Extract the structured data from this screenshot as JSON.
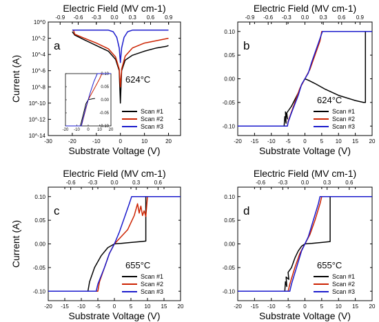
{
  "chart_data": [
    {
      "panel": "a",
      "type": "line",
      "temperature_label": "624°C",
      "xlabel": "Substrate Voltage (V)",
      "ylabel": "Current (A)",
      "top_axis_label": "Electric Field (MV cm-1)",
      "xlim": [
        -30,
        25
      ],
      "ylim_log10": [
        -14,
        0
      ],
      "yscale": "log",
      "xticks": [
        "-30",
        "-20",
        "-10",
        "0",
        "10",
        "20"
      ],
      "yticks": [
        "10^0",
        "10^-2",
        "10^-4",
        "10^-6",
        "10^-8",
        "10^-10",
        "10^-12",
        "10^-14"
      ],
      "top_ticks": [
        "-0.9",
        "-0.6",
        "-0.3",
        "0.0",
        "0.3",
        "0.6",
        "0.9"
      ],
      "legend": [
        "Scan #1",
        "Scan #2",
        "Scan #3"
      ],
      "legend_position": "lower-right",
      "series": [
        {
          "name": "Scan #1",
          "color": "#000000",
          "x": [
            -20,
            -19,
            -15,
            -10,
            -5,
            -2,
            -0.5,
            0,
            0.5,
            2,
            5,
            10,
            15,
            19,
            20
          ],
          "log10_y": [
            -1.2,
            -1.6,
            -2.2,
            -2.9,
            -3.6,
            -4.6,
            -6,
            -10,
            -6,
            -4.7,
            -4.1,
            -3.6,
            -3.2,
            -3,
            -2.9
          ]
        },
        {
          "name": "Scan #2",
          "color": "#cc2200",
          "x": [
            -20,
            -19.5,
            -19,
            -15,
            -10,
            -5,
            -2,
            -0.5,
            0,
            0.5,
            2,
            5,
            10,
            15,
            20
          ],
          "log10_y": [
            -1,
            -1,
            -1.5,
            -2,
            -2.6,
            -3.3,
            -4.3,
            -5.8,
            -8,
            -5.8,
            -4.2,
            -3.2,
            -2.6,
            -2.3,
            -2
          ]
        },
        {
          "name": "Scan #3",
          "color": "#1a1acc",
          "x": [
            -20,
            -19,
            -15,
            -10,
            -5,
            -3,
            -1.5,
            -0.5,
            0,
            0.5,
            1.5,
            3,
            5,
            10,
            20
          ],
          "log10_y": [
            -1,
            -1,
            -1,
            -1,
            -1,
            -1.2,
            -1.9,
            -3.2,
            -5,
            -3.2,
            -1.9,
            -1.2,
            -1,
            -1,
            -1
          ]
        }
      ],
      "inset": {
        "xlim": [
          -20,
          20
        ],
        "ylim": [
          -0.1,
          0.1
        ],
        "xticks": [
          "-20",
          "-10",
          "0",
          "10",
          "20"
        ],
        "yticks": [
          "0.10",
          "0.05",
          "0.00",
          "-0.05",
          "-0.10"
        ]
      }
    },
    {
      "panel": "b",
      "type": "line",
      "temperature_label": "624°C",
      "xlabel": "Substrate Voltage (V)",
      "ylabel": "",
      "top_axis_label": "Electric Field (MV cm-1)",
      "xlim": [
        -20,
        20
      ],
      "ylim": [
        -0.12,
        0.12
      ],
      "xticks": [
        "-20",
        "-15",
        "-10",
        "-5",
        "0",
        "5",
        "10",
        "15",
        "20"
      ],
      "yticks": [
        "0.10",
        "0.05",
        "0.00",
        "-0.05",
        "-0.10"
      ],
      "top_ticks": [
        "-0.9",
        "-0.6",
        "-0.3",
        "0.0",
        "0.3",
        "0.6",
        "0.9"
      ],
      "legend": [
        "Scan #1",
        "Scan #2",
        "Scan #3"
      ],
      "legend_position": "lower-right",
      "series": [
        {
          "name": "Scan #1",
          "color": "#000000",
          "x": [
            -20,
            -6.2,
            -6,
            -5.6,
            -5.8,
            -5.2,
            -5.4,
            -4,
            -2,
            -1,
            0,
            1,
            3,
            6,
            10,
            15,
            17.5,
            18,
            18,
            18.2,
            20
          ],
          "y": [
            -0.1,
            -0.1,
            -0.08,
            -0.094,
            -0.07,
            -0.085,
            -0.072,
            -0.058,
            -0.03,
            -0.013,
            0,
            -0.003,
            -0.01,
            -0.022,
            -0.035,
            -0.046,
            -0.05,
            -0.05,
            0.1,
            0.1,
            0.1
          ]
        },
        {
          "name": "Scan #2",
          "color": "#cc2200",
          "x": [
            -20,
            -5.2,
            -5,
            -4.5,
            -3,
            -1.5,
            0,
            1.5,
            3,
            4.5,
            5,
            20
          ],
          "y": [
            -0.1,
            -0.1,
            -0.09,
            -0.08,
            -0.05,
            -0.02,
            0,
            0.02,
            0.05,
            0.08,
            0.1,
            0.1
          ]
        },
        {
          "name": "Scan #3",
          "color": "#1a1acc",
          "x": [
            -20,
            -5.2,
            -5,
            -4,
            -2,
            -1,
            0,
            1,
            2,
            4,
            5.2,
            20
          ],
          "y": [
            -0.1,
            -0.1,
            -0.092,
            -0.072,
            -0.035,
            -0.012,
            0,
            0.012,
            0.035,
            0.075,
            0.1,
            0.1
          ]
        }
      ]
    },
    {
      "panel": "c",
      "type": "line",
      "temperature_label": "655°C",
      "xlabel": "Substrate Voltage (V)",
      "ylabel": "Current (A)",
      "top_axis_label": "Electric Field (MV cm-1)",
      "xlim": [
        -20,
        20
      ],
      "ylim": [
        -0.12,
        0.12
      ],
      "xticks": [
        "-20",
        "-15",
        "-10",
        "-5",
        "0",
        "5",
        "10",
        "15",
        "20"
      ],
      "yticks": [
        "0.10",
        "0.05",
        "0.00",
        "-0.05",
        "-0.10"
      ],
      "top_ticks": [
        "-0.6",
        "-0.3",
        "0.0",
        "0.3",
        "0.6"
      ],
      "legend": [
        "Scan #1",
        "Scan #2",
        "Scan #3"
      ],
      "legend_position": "lower-right",
      "series": [
        {
          "name": "Scan #1",
          "color": "#000000",
          "x": [
            -20,
            -8,
            -7.5,
            -6,
            -4,
            -2,
            0,
            2,
            5,
            8,
            9.5,
            9.5,
            20
          ],
          "y": [
            -0.1,
            -0.1,
            -0.08,
            -0.05,
            -0.025,
            -0.008,
            0,
            0.001,
            0.003,
            0.005,
            0.006,
            0.1,
            0.1
          ]
        },
        {
          "name": "Scan #2",
          "color": "#cc2200",
          "x": [
            -20,
            -5,
            -4.5,
            -3,
            -1.5,
            0,
            2,
            4,
            6,
            7,
            7.5,
            8,
            8.5,
            9,
            9.5,
            10,
            20
          ],
          "y": [
            -0.1,
            -0.1,
            -0.08,
            -0.05,
            -0.02,
            0,
            0.015,
            0.03,
            0.06,
            0.085,
            0.065,
            0.08,
            0.06,
            0.07,
            0.058,
            0.1,
            0.1
          ]
        },
        {
          "name": "Scan #3",
          "color": "#1a1acc",
          "x": [
            -20,
            -5.5,
            -5,
            -3,
            -1.5,
            0,
            1.5,
            3,
            4.5,
            5.2,
            20
          ],
          "y": [
            -0.1,
            -0.1,
            -0.085,
            -0.05,
            -0.02,
            0,
            0.025,
            0.055,
            0.085,
            0.1,
            0.1
          ]
        }
      ]
    },
    {
      "panel": "d",
      "type": "line",
      "temperature_label": "655°C",
      "xlabel": "Substrate Voltage (V)",
      "ylabel": "",
      "top_axis_label": "Electric Field (MV cm-1)",
      "xlim": [
        -20,
        20
      ],
      "ylim": [
        -0.12,
        0.12
      ],
      "xticks": [
        "-20",
        "-15",
        "-10",
        "-5",
        "0",
        "5",
        "10",
        "15",
        "20"
      ],
      "yticks": [
        "0.10",
        "0.05",
        "0.00",
        "-0.05",
        "-0.10"
      ],
      "top_ticks": [
        "-0.6",
        "-0.3",
        "0.0",
        "0.3",
        "0.6"
      ],
      "legend": [
        "Scan #1",
        "Scan #2",
        "Scan #3"
      ],
      "legend_position": "lower-right",
      "series": [
        {
          "name": "Scan #1",
          "color": "#000000",
          "x": [
            -20,
            -6,
            -5.8,
            -5.4,
            -5.6,
            -4.8,
            -5,
            -4,
            -3,
            -2,
            -1,
            0,
            2,
            5,
            7.5,
            7.5,
            20
          ],
          "y": [
            -0.1,
            -0.1,
            -0.08,
            -0.09,
            -0.07,
            -0.075,
            -0.06,
            -0.05,
            -0.03,
            -0.015,
            -0.005,
            0,
            0.001,
            0.003,
            0.005,
            0.1,
            0.1
          ]
        },
        {
          "name": "Scan #2",
          "color": "#cc2200",
          "x": [
            -20,
            -5,
            -4.5,
            -3,
            -1.5,
            0,
            1.5,
            3,
            4.5,
            5,
            20
          ],
          "y": [
            -0.1,
            -0.1,
            -0.085,
            -0.05,
            -0.02,
            0,
            0.02,
            0.05,
            0.085,
            0.1,
            0.1
          ]
        },
        {
          "name": "Scan #3",
          "color": "#1a1acc",
          "x": [
            -20,
            -4.5,
            -4,
            -2.5,
            -1,
            0,
            1,
            2.5,
            4,
            4.5,
            20
          ],
          "y": [
            -0.1,
            -0.1,
            -0.085,
            -0.05,
            -0.015,
            0,
            0.015,
            0.05,
            0.085,
            0.1,
            0.1
          ]
        }
      ]
    }
  ]
}
